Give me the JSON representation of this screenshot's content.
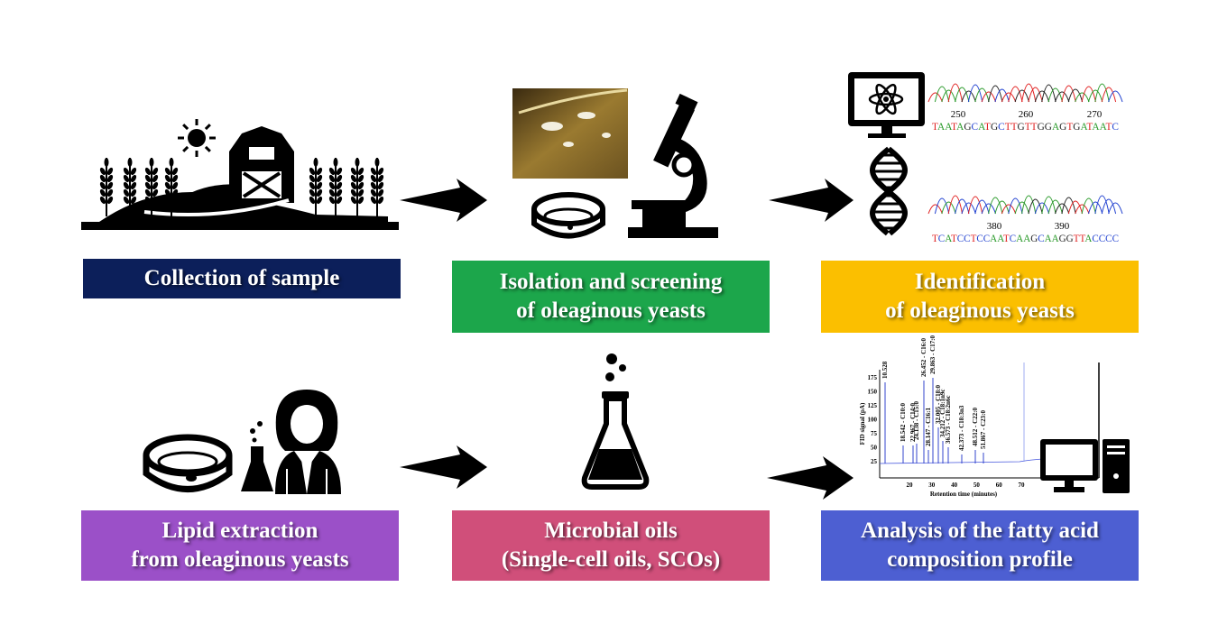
{
  "steps": [
    {
      "lines": [
        "Collection of sample"
      ]
    },
    {
      "lines": [
        "Isolation and screening",
        "of oleaginous yeasts"
      ]
    },
    {
      "lines": [
        "Identification",
        "of oleaginous yeasts"
      ]
    },
    {
      "lines": [
        "Lipid extraction",
        "from oleaginous yeasts"
      ]
    },
    {
      "lines": [
        "Microbial oils",
        "(Single-cell oils, SCOs)"
      ]
    },
    {
      "lines": [
        "Analysis of the fatty acid",
        "composition profile"
      ]
    }
  ],
  "sequencing": {
    "track1": {
      "positions": [
        "250",
        "260",
        "270"
      ],
      "sequence": "TAATAGCATGCTTGTTGGAGTGATAATC"
    },
    "track2": {
      "positions": [
        "380",
        "390"
      ],
      "sequence": "TCATCCTCCAATCAAGCAAGGTTACCCC"
    }
  },
  "chromatogram": {
    "y_label": "FID signal (pA)",
    "x_label": "Retention time (minutes)",
    "yticks": [
      "25",
      "50",
      "75",
      "100",
      "125",
      "150",
      "175"
    ],
    "xticks": [
      "20",
      "30",
      "40",
      "50",
      "60",
      "70"
    ],
    "peaks": [
      "10.528",
      "18.542 - C10:0",
      "22.967 - C14:0",
      "24.138 - C15:0",
      "26.452 - C16:0",
      "28.147 - C16:1",
      "29.863 - C17:0",
      "32.005 - C18:0",
      "34.212 - C18:1n9c",
      "36.573 - C18:2n6c",
      "42.373 - C18:3n3",
      "48.512 - C22:0",
      "51.867 - C23:0"
    ]
  }
}
